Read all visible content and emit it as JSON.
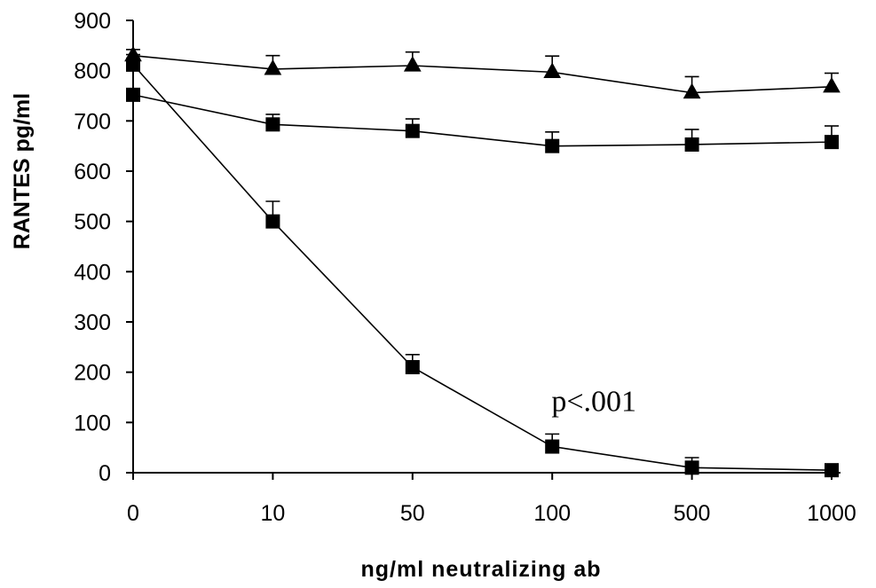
{
  "chart_data": {
    "type": "line",
    "title": "",
    "xlabel": "ng/ml neutralizing ab",
    "ylabel": "RANTES pg/ml",
    "categories": [
      "0",
      "10",
      "50",
      "100",
      "500",
      "1000"
    ],
    "ylim": [
      0,
      900
    ],
    "yticks": [
      0,
      100,
      200,
      300,
      400,
      500,
      600,
      700,
      800,
      900
    ],
    "grid": false,
    "legend": "none",
    "series": [
      {
        "marker": "triangle",
        "values": [
          830,
          803,
          810,
          797,
          756,
          768
        ],
        "errors": [
          12,
          27,
          27,
          32,
          32,
          27
        ]
      },
      {
        "marker": "square",
        "values": [
          752,
          693,
          680,
          650,
          653,
          658
        ],
        "errors": [
          0,
          20,
          24,
          28,
          30,
          32
        ]
      },
      {
        "marker": "square",
        "values": [
          812,
          500,
          210,
          52,
          10,
          5
        ],
        "errors": [
          20,
          40,
          25,
          25,
          20,
          0
        ]
      }
    ],
    "annotations": [
      {
        "text": "p<.001",
        "at_category": "100",
        "y": 130
      }
    ]
  }
}
